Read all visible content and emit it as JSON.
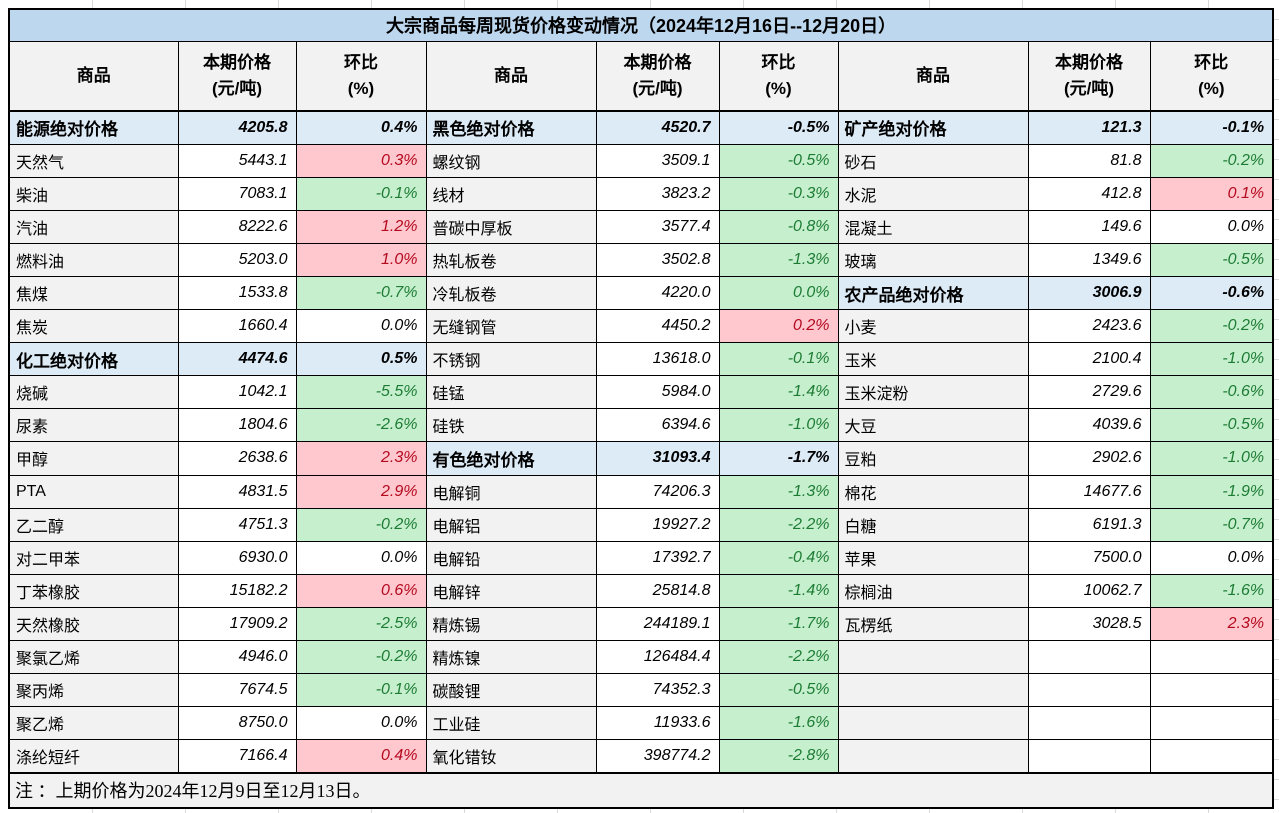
{
  "title": "大宗商品每周现货价格变动情况（2024年12月16日--12月20日）",
  "note": "注 ：上期价格为2024年12月9日至12月13日。",
  "header": {
    "commodity": "商品",
    "price_l1": "本期价格",
    "price_l2": "(元/吨)",
    "pct_l1": "环比",
    "pct_l2": "(%)"
  },
  "colors": {
    "title_bg": "#BDD7EE",
    "aggregate_bg": "#DDEBF7",
    "name_bg": "#F2F2F2",
    "header_bg": "#F2F2F2",
    "up_bg": "#FFC7CE",
    "up_text": "#B40A1E",
    "down_bg": "#C6EFCE",
    "down_text": "#1D7C34"
  },
  "groups": [
    {
      "rows": [
        {
          "name": "能源绝对价格",
          "price": "4205.8",
          "pct": "0.4%",
          "type": "agg"
        },
        {
          "name": "天然气",
          "price": "5443.1",
          "pct": "0.3%",
          "type": "up"
        },
        {
          "name": "柴油",
          "price": "7083.1",
          "pct": "-0.1%",
          "type": "down"
        },
        {
          "name": "汽油",
          "price": "8222.6",
          "pct": "1.2%",
          "type": "up"
        },
        {
          "name": "燃料油",
          "price": "5203.0",
          "pct": "1.0%",
          "type": "up"
        },
        {
          "name": "焦煤",
          "price": "1533.8",
          "pct": "-0.7%",
          "type": "down"
        },
        {
          "name": "焦炭",
          "price": "1660.4",
          "pct": "0.0%",
          "type": "zero"
        },
        {
          "name": "化工绝对价格",
          "price": "4474.6",
          "pct": "0.5%",
          "type": "agg"
        },
        {
          "name": "烧碱",
          "price": "1042.1",
          "pct": "-5.5%",
          "type": "down"
        },
        {
          "name": "尿素",
          "price": "1804.6",
          "pct": "-2.6%",
          "type": "down"
        },
        {
          "name": "甲醇",
          "price": "2638.6",
          "pct": "2.3%",
          "type": "up"
        },
        {
          "name": "PTA",
          "price": "4831.5",
          "pct": "2.9%",
          "type": "up"
        },
        {
          "name": "乙二醇",
          "price": "4751.3",
          "pct": "-0.2%",
          "type": "down"
        },
        {
          "name": "对二甲苯",
          "price": "6930.0",
          "pct": "0.0%",
          "type": "zero"
        },
        {
          "name": "丁苯橡胶",
          "price": "15182.2",
          "pct": "0.6%",
          "type": "up"
        },
        {
          "name": "天然橡胶",
          "price": "17909.2",
          "pct": "-2.5%",
          "type": "down"
        },
        {
          "name": "聚氯乙烯",
          "price": "4946.0",
          "pct": "-0.2%",
          "type": "down"
        },
        {
          "name": "聚丙烯",
          "price": "7674.5",
          "pct": "-0.1%",
          "type": "down"
        },
        {
          "name": "聚乙烯",
          "price": "8750.0",
          "pct": "0.0%",
          "type": "zero"
        },
        {
          "name": "涤纶短纤",
          "price": "7166.4",
          "pct": "0.4%",
          "type": "up"
        }
      ]
    },
    {
      "rows": [
        {
          "name": "黑色绝对价格",
          "price": "4520.7",
          "pct": "-0.5%",
          "type": "agg"
        },
        {
          "name": "螺纹钢",
          "price": "3509.1",
          "pct": "-0.5%",
          "type": "down"
        },
        {
          "name": "线材",
          "price": "3823.2",
          "pct": "-0.3%",
          "type": "down"
        },
        {
          "name": "普碳中厚板",
          "price": "3577.4",
          "pct": "-0.8%",
          "type": "down"
        },
        {
          "name": "热轧板卷",
          "price": "3502.8",
          "pct": "-1.3%",
          "type": "down"
        },
        {
          "name": "冷轧板卷",
          "price": "4220.0",
          "pct": "0.0%",
          "type": "down"
        },
        {
          "name": "无缝钢管",
          "price": "4450.2",
          "pct": "0.2%",
          "type": "up"
        },
        {
          "name": "不锈钢",
          "price": "13618.0",
          "pct": "-0.1%",
          "type": "down"
        },
        {
          "name": "硅锰",
          "price": "5984.0",
          "pct": "-1.4%",
          "type": "down"
        },
        {
          "name": "硅铁",
          "price": "6394.6",
          "pct": "-1.0%",
          "type": "down"
        },
        {
          "name": "有色绝对价格",
          "price": "31093.4",
          "pct": "-1.7%",
          "type": "agg"
        },
        {
          "name": "电解铜",
          "price": "74206.3",
          "pct": "-1.3%",
          "type": "down"
        },
        {
          "name": "电解铝",
          "price": "19927.2",
          "pct": "-2.2%",
          "type": "down"
        },
        {
          "name": "电解铅",
          "price": "17392.7",
          "pct": "-0.4%",
          "type": "down"
        },
        {
          "name": "电解锌",
          "price": "25814.8",
          "pct": "-1.4%",
          "type": "down"
        },
        {
          "name": "精炼锡",
          "price": "244189.1",
          "pct": "-1.7%",
          "type": "down"
        },
        {
          "name": "精炼镍",
          "price": "126484.4",
          "pct": "-2.2%",
          "type": "down"
        },
        {
          "name": "碳酸锂",
          "price": "74352.3",
          "pct": "-0.5%",
          "type": "down"
        },
        {
          "name": "工业硅",
          "price": "11933.6",
          "pct": "-1.6%",
          "type": "down"
        },
        {
          "name": "氧化错钕",
          "price": "398774.2",
          "pct": "-2.8%",
          "type": "down"
        }
      ]
    },
    {
      "rows": [
        {
          "name": "矿产绝对价格",
          "price": "121.3",
          "pct": "-0.1%",
          "type": "agg"
        },
        {
          "name": "砂石",
          "price": "81.8",
          "pct": "-0.2%",
          "type": "down"
        },
        {
          "name": "水泥",
          "price": "412.8",
          "pct": "0.1%",
          "type": "up"
        },
        {
          "name": "混凝土",
          "price": "149.6",
          "pct": "0.0%",
          "type": "zero"
        },
        {
          "name": "玻璃",
          "price": "1349.6",
          "pct": "-0.5%",
          "type": "down"
        },
        {
          "name": "农产品绝对价格",
          "price": "3006.9",
          "pct": "-0.6%",
          "type": "agg"
        },
        {
          "name": "小麦",
          "price": "2423.6",
          "pct": "-0.2%",
          "type": "down"
        },
        {
          "name": "玉米",
          "price": "2100.4",
          "pct": "-1.0%",
          "type": "down"
        },
        {
          "name": "玉米淀粉",
          "price": "2729.6",
          "pct": "-0.6%",
          "type": "down"
        },
        {
          "name": "大豆",
          "price": "4039.6",
          "pct": "-0.5%",
          "type": "down"
        },
        {
          "name": "豆粕",
          "price": "2902.6",
          "pct": "-1.0%",
          "type": "down"
        },
        {
          "name": "棉花",
          "price": "14677.6",
          "pct": "-1.9%",
          "type": "down"
        },
        {
          "name": "白糖",
          "price": "6191.3",
          "pct": "-0.7%",
          "type": "down"
        },
        {
          "name": "苹果",
          "price": "7500.0",
          "pct": "0.0%",
          "type": "zero"
        },
        {
          "name": "棕榈油",
          "price": "10062.7",
          "pct": "-1.6%",
          "type": "down"
        },
        {
          "name": "瓦楞纸",
          "price": "3028.5",
          "pct": "2.3%",
          "type": "up"
        },
        {
          "name": "",
          "price": "",
          "pct": "",
          "type": "empty"
        },
        {
          "name": "",
          "price": "",
          "pct": "",
          "type": "empty"
        },
        {
          "name": "",
          "price": "",
          "pct": "",
          "type": "empty"
        },
        {
          "name": "",
          "price": "",
          "pct": "",
          "type": "empty"
        }
      ]
    }
  ]
}
